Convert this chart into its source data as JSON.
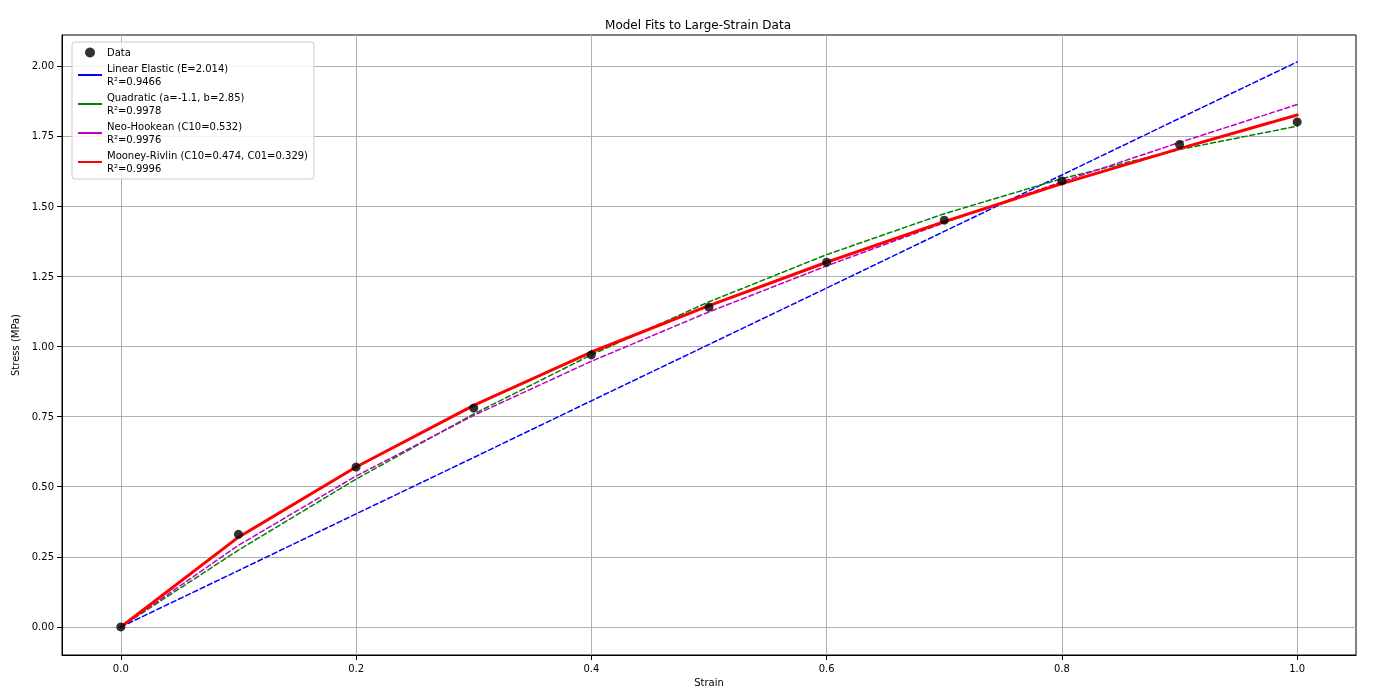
{
  "chart_data": {
    "type": "line",
    "title": "Model Fits to Large-Strain Data",
    "xlabel": "Strain",
    "ylabel": "Stress (MPa)",
    "x": [
      0,
      0.1,
      0.2,
      0.3,
      0.4,
      0.5,
      0.6,
      0.7,
      0.8,
      0.9,
      1.0
    ],
    "series": [
      {
        "name": "Data",
        "type": "scatter",
        "marker": "circle",
        "color": "#000000",
        "values": [
          0,
          0.33,
          0.57,
          0.78,
          0.97,
          1.14,
          1.3,
          1.45,
          1.59,
          1.72,
          1.8
        ]
      },
      {
        "name": "Linear Elastic (E=2.014)\nR²=0.9466",
        "line_style": "dashed",
        "color": "#0000ff",
        "values": [
          0,
          0.201,
          0.403,
          0.604,
          0.806,
          1.007,
          1.208,
          1.41,
          1.611,
          1.813,
          2.014
        ]
      },
      {
        "name": "Quadratic (a=-1.1, b=2.85)\nR²=0.9978",
        "line_style": "dashed",
        "color": "#008000",
        "values": [
          0,
          0.274,
          0.527,
          0.759,
          0.97,
          1.159,
          1.327,
          1.473,
          1.598,
          1.702,
          1.785
        ]
      },
      {
        "name": "Neo-Hookean (C10=0.532)\nR²=0.9976",
        "line_style": "dashed",
        "color": "#bf00bf",
        "values": [
          0,
          0.291,
          0.538,
          0.754,
          0.947,
          1.123,
          1.287,
          1.441,
          1.587,
          1.727,
          1.862
        ]
      },
      {
        "name": "Mooney-Rivlin (C10=0.474, C01=0.329)\nR²=0.9996",
        "line_style": "solid",
        "color": "#ff0000",
        "values": [
          0,
          0.32,
          0.57,
          0.79,
          0.98,
          1.145,
          1.3,
          1.445,
          1.58,
          1.705,
          1.825
        ]
      }
    ],
    "marker": "none",
    "xlim": [
      -0.05,
      1.05
    ],
    "xticks": [
      {
        "value": 0,
        "label": "0.0"
      },
      0.2,
      0.4,
      0.6,
      0.8,
      {
        "value": 1,
        "label": "1.0"
      }
    ],
    "ylim": [
      -0.1,
      2.11
    ],
    "yticks": [
      {
        "value": 0,
        "label": "0.00"
      },
      0.25,
      {
        "value": 0.5,
        "label": "0.50"
      },
      0.75,
      {
        "value": 1,
        "label": "1.00"
      },
      1.25,
      {
        "value": 1.5,
        "label": "1.50"
      },
      1.75,
      {
        "value": 2,
        "label": "2.00"
      }
    ],
    "grid": true,
    "legend": "top left"
  }
}
